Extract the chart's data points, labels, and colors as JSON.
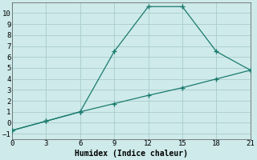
{
  "xlabel": "Humidex (Indice chaleur)",
  "background_color": "#ceeaea",
  "grid_color": "#aacccc",
  "line_color": "#1a7a6e",
  "line1_x": [
    0,
    3,
    6,
    9,
    12,
    15,
    18,
    21
  ],
  "line1_y": [
    -0.7,
    0.15,
    1.0,
    6.5,
    10.6,
    10.6,
    6.5,
    4.8
  ],
  "line2_x": [
    0,
    3,
    6,
    9,
    12,
    15,
    18,
    21
  ],
  "line2_y": [
    -0.7,
    0.15,
    1.0,
    1.75,
    2.5,
    3.2,
    4.0,
    4.8
  ],
  "xlim": [
    0,
    21
  ],
  "ylim": [
    -1.5,
    11.0
  ],
  "xticks": [
    0,
    3,
    6,
    9,
    12,
    15,
    18,
    21
  ],
  "yticks": [
    -1,
    0,
    1,
    2,
    3,
    4,
    5,
    6,
    7,
    8,
    9,
    10
  ],
  "fontsize": 7,
  "marker": "P",
  "marker_size": 3.0,
  "line_width": 0.9
}
